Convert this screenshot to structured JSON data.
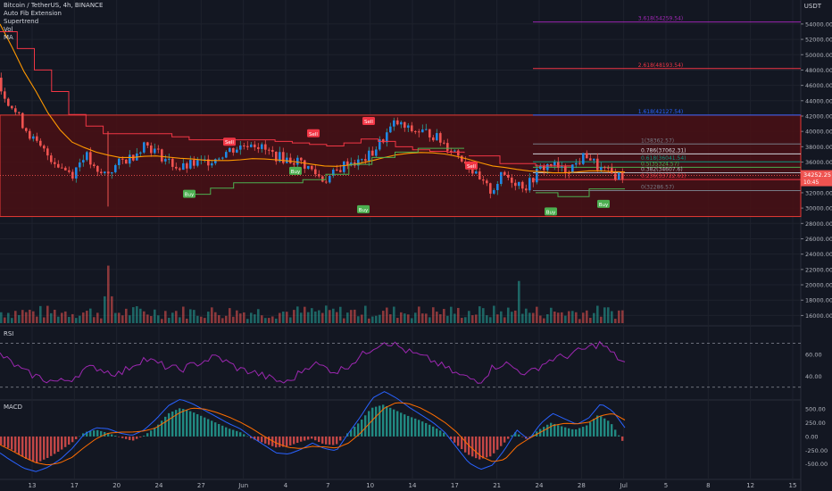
{
  "header": {
    "symbol": "Bitcoin / TetherUS, 4h, BINANCE",
    "indicators": [
      "Auto Fib Extension",
      "Supertrend",
      "Vol",
      "MA"
    ]
  },
  "currency": "USDT",
  "chart_data": {
    "type": "candlestick",
    "price_axis": {
      "ticks": [
        "54000.00",
        "52000.00",
        "50000.00",
        "48000.00",
        "46000.00",
        "44000.00",
        "42000.00",
        "40000.00",
        "38000.00",
        "36000.00",
        "34000.00",
        "32000.00",
        "30000.00",
        "28000.00",
        "26000.00",
        "24000.00",
        "22000.00",
        "20000.00",
        "18000.00",
        "16000.00"
      ],
      "ylim": [
        15000,
        55500
      ]
    },
    "x_axis_ticks": [
      "13",
      "17",
      "20",
      "24",
      "27",
      "Jun",
      "4",
      "7",
      "10",
      "14",
      "17",
      "21",
      "24",
      "28",
      "Jul",
      "5",
      "8",
      "12",
      "15"
    ],
    "last_price": "34252.25",
    "last_price_sub": "10:45",
    "fib_levels": [
      {
        "label": "3.618(54259.54)",
        "value": 54259.54,
        "color": "#9c27b0"
      },
      {
        "label": "2.618(48193.54)",
        "value": 48193.54,
        "color": "#f23645"
      },
      {
        "label": "1.618(42127.54)",
        "value": 42127.54,
        "color": "#2962ff"
      },
      {
        "label": "1(38362.57)",
        "value": 38362.57,
        "color": "#787b86"
      },
      {
        "label": "0.786(37062.31)",
        "value": 37062.31,
        "color": "#d1d4dc"
      },
      {
        "label": "0.618(36041.54)",
        "value": 36041.54,
        "color": "#089981"
      },
      {
        "label": "0.5(35324.57)",
        "value": 35324.57,
        "color": "#4caf50"
      },
      {
        "label": "0.382(34607.6)",
        "value": 34607.6,
        "color": "#b2b5be"
      },
      {
        "label": "0.236(33722.61)",
        "value": 33722.61,
        "color": "#f23645"
      },
      {
        "label": "0(32286.57)",
        "value": 32286.57,
        "color": "#787b86"
      }
    ],
    "zone": {
      "top": 42127.54,
      "bottom": 28900
    },
    "close_series": [
      45500,
      43000,
      40500,
      38200,
      36800,
      35400,
      34500,
      37200,
      34300,
      34700,
      36000,
      36800,
      38500,
      37300,
      36100,
      35100,
      35700,
      36000,
      36600,
      37500,
      38000,
      38700,
      37600,
      36800,
      36300,
      36100,
      34900,
      33600,
      34600,
      36100,
      35900,
      37100,
      39100,
      41200,
      40200,
      40000,
      39700,
      38500,
      37400,
      35900,
      33500,
      32200,
      34400,
      33500,
      32800,
      35000,
      35800,
      34800,
      35600,
      37000,
      35200,
      34400,
      34252
    ],
    "ma_series": [
      54000,
      51000,
      47800,
      45200,
      42400,
      40200,
      38600,
      37900,
      37300,
      36900,
      36600,
      36600,
      36750,
      36800,
      36650,
      36500,
      36400,
      36250,
      36200,
      36200,
      36300,
      36450,
      36400,
      36300,
      36150,
      35950,
      35700,
      35500,
      35450,
      35600,
      35850,
      36200,
      36600,
      36950,
      37150,
      37250,
      37200,
      37050,
      36750,
      36350,
      35900,
      35500,
      35300,
      35050,
      34850,
      34750,
      34600,
      34600,
      34700,
      34850,
      34850,
      34750,
      34700
    ],
    "supertrend_down": [
      53000,
      50800,
      48000,
      45200,
      42200,
      40700,
      39700,
      39700,
      39700,
      39700,
      39300,
      38900,
      38900,
      38900,
      38900,
      38900,
      38700,
      38500,
      38300,
      38100,
      38500,
      39000,
      38700,
      38000,
      37600,
      37400,
      37300,
      37200
    ],
    "supertrend_up": [
      31800,
      32600,
      33300,
      33300,
      33300,
      33700,
      34400,
      35700,
      36600,
      37300,
      37800,
      37800,
      37800
    ],
    "signals": [
      {
        "label": "Buy",
        "type": "buy",
        "price": 31800
      },
      {
        "label": "Sell",
        "type": "sell",
        "price": 38600
      },
      {
        "label": "Buy",
        "type": "buy",
        "price": 34800
      },
      {
        "label": "Sell",
        "type": "sell",
        "price": 39700
      },
      {
        "label": "Buy",
        "type": "buy",
        "price": 29800
      },
      {
        "label": "Sell",
        "type": "sell",
        "price": 41300
      },
      {
        "label": "Sell",
        "type": "sell",
        "price": 35500
      },
      {
        "label": "Buy",
        "type": "buy",
        "price": 29500
      },
      {
        "label": "Buy",
        "type": "buy",
        "price": 30500
      }
    ],
    "volume_spikes": [
      {
        "date": "20",
        "value": 22500
      },
      {
        "date": "21 Jun",
        "value": 20500
      }
    ],
    "rsi": {
      "label": "RSI",
      "ticks": [
        "60.00",
        "40.00"
      ],
      "upper": 70,
      "lower": 30,
      "series": [
        60,
        52,
        44,
        40,
        36,
        35,
        38,
        46,
        48,
        44,
        42,
        50,
        56,
        52,
        48,
        46,
        50,
        54,
        58,
        52,
        46,
        44,
        40,
        36,
        34,
        44,
        52,
        48,
        44,
        50,
        58,
        66,
        72,
        68,
        62,
        58,
        54,
        48,
        42,
        38,
        36,
        48,
        52,
        46,
        42,
        50,
        56,
        58,
        62,
        66,
        70,
        60,
        52
      ]
    },
    "macd": {
      "label": "MACD",
      "ticks": [
        "500.00",
        "250.00",
        "0.00",
        "-250.00",
        "-500.00"
      ],
      "histogram": [
        -150,
        -250,
        -400,
        -480,
        -380,
        -250,
        -100,
        80,
        120,
        60,
        -20,
        -80,
        20,
        180,
        420,
        520,
        450,
        350,
        250,
        150,
        80,
        -40,
        -120,
        -200,
        -180,
        -100,
        -40,
        -140,
        -160,
        60,
        260,
        520,
        580,
        480,
        380,
        300,
        200,
        80,
        -120,
        -320,
        -420,
        -360,
        -140,
        80,
        -50,
        120,
        250,
        180,
        120,
        200,
        400,
        260,
        -80
      ],
      "macd_line": [
        -300,
        -450,
        -580,
        -640,
        -560,
        -420,
        -220,
        40,
        160,
        140,
        60,
        20,
        120,
        320,
        560,
        680,
        600,
        480,
        360,
        240,
        140,
        -20,
        -160,
        -300,
        -320,
        -240,
        -120,
        -220,
        -260,
        60,
        360,
        700,
        820,
        700,
        540,
        400,
        260,
        80,
        -200,
        -480,
        -600,
        -520,
        -240,
        120,
        -60,
        240,
        420,
        320,
        220,
        340,
        600,
        460,
        160
      ],
      "signal_line": [
        -150,
        -260,
        -380,
        -480,
        -520,
        -480,
        -380,
        -200,
        -40,
        60,
        80,
        80,
        100,
        160,
        300,
        440,
        520,
        500,
        440,
        360,
        260,
        140,
        0,
        -120,
        -200,
        -220,
        -180,
        -190,
        -210,
        -120,
        60,
        300,
        520,
        620,
        600,
        520,
        400,
        260,
        80,
        -160,
        -360,
        -460,
        -420,
        -180,
        -40,
        80,
        200,
        240,
        230,
        260,
        380,
        420,
        300
      ]
    },
    "colors": {
      "up": "#26a69a",
      "down": "#ef5350",
      "ma": "#ff9800",
      "supertrend_up": "#4caf50",
      "supertrend_down": "#f23645",
      "rsi": "#9c27b0",
      "macd": "#2962ff",
      "signal": "#ff6d00",
      "zone_fill": "#4a0f14",
      "zone_border": "#e53935"
    }
  }
}
